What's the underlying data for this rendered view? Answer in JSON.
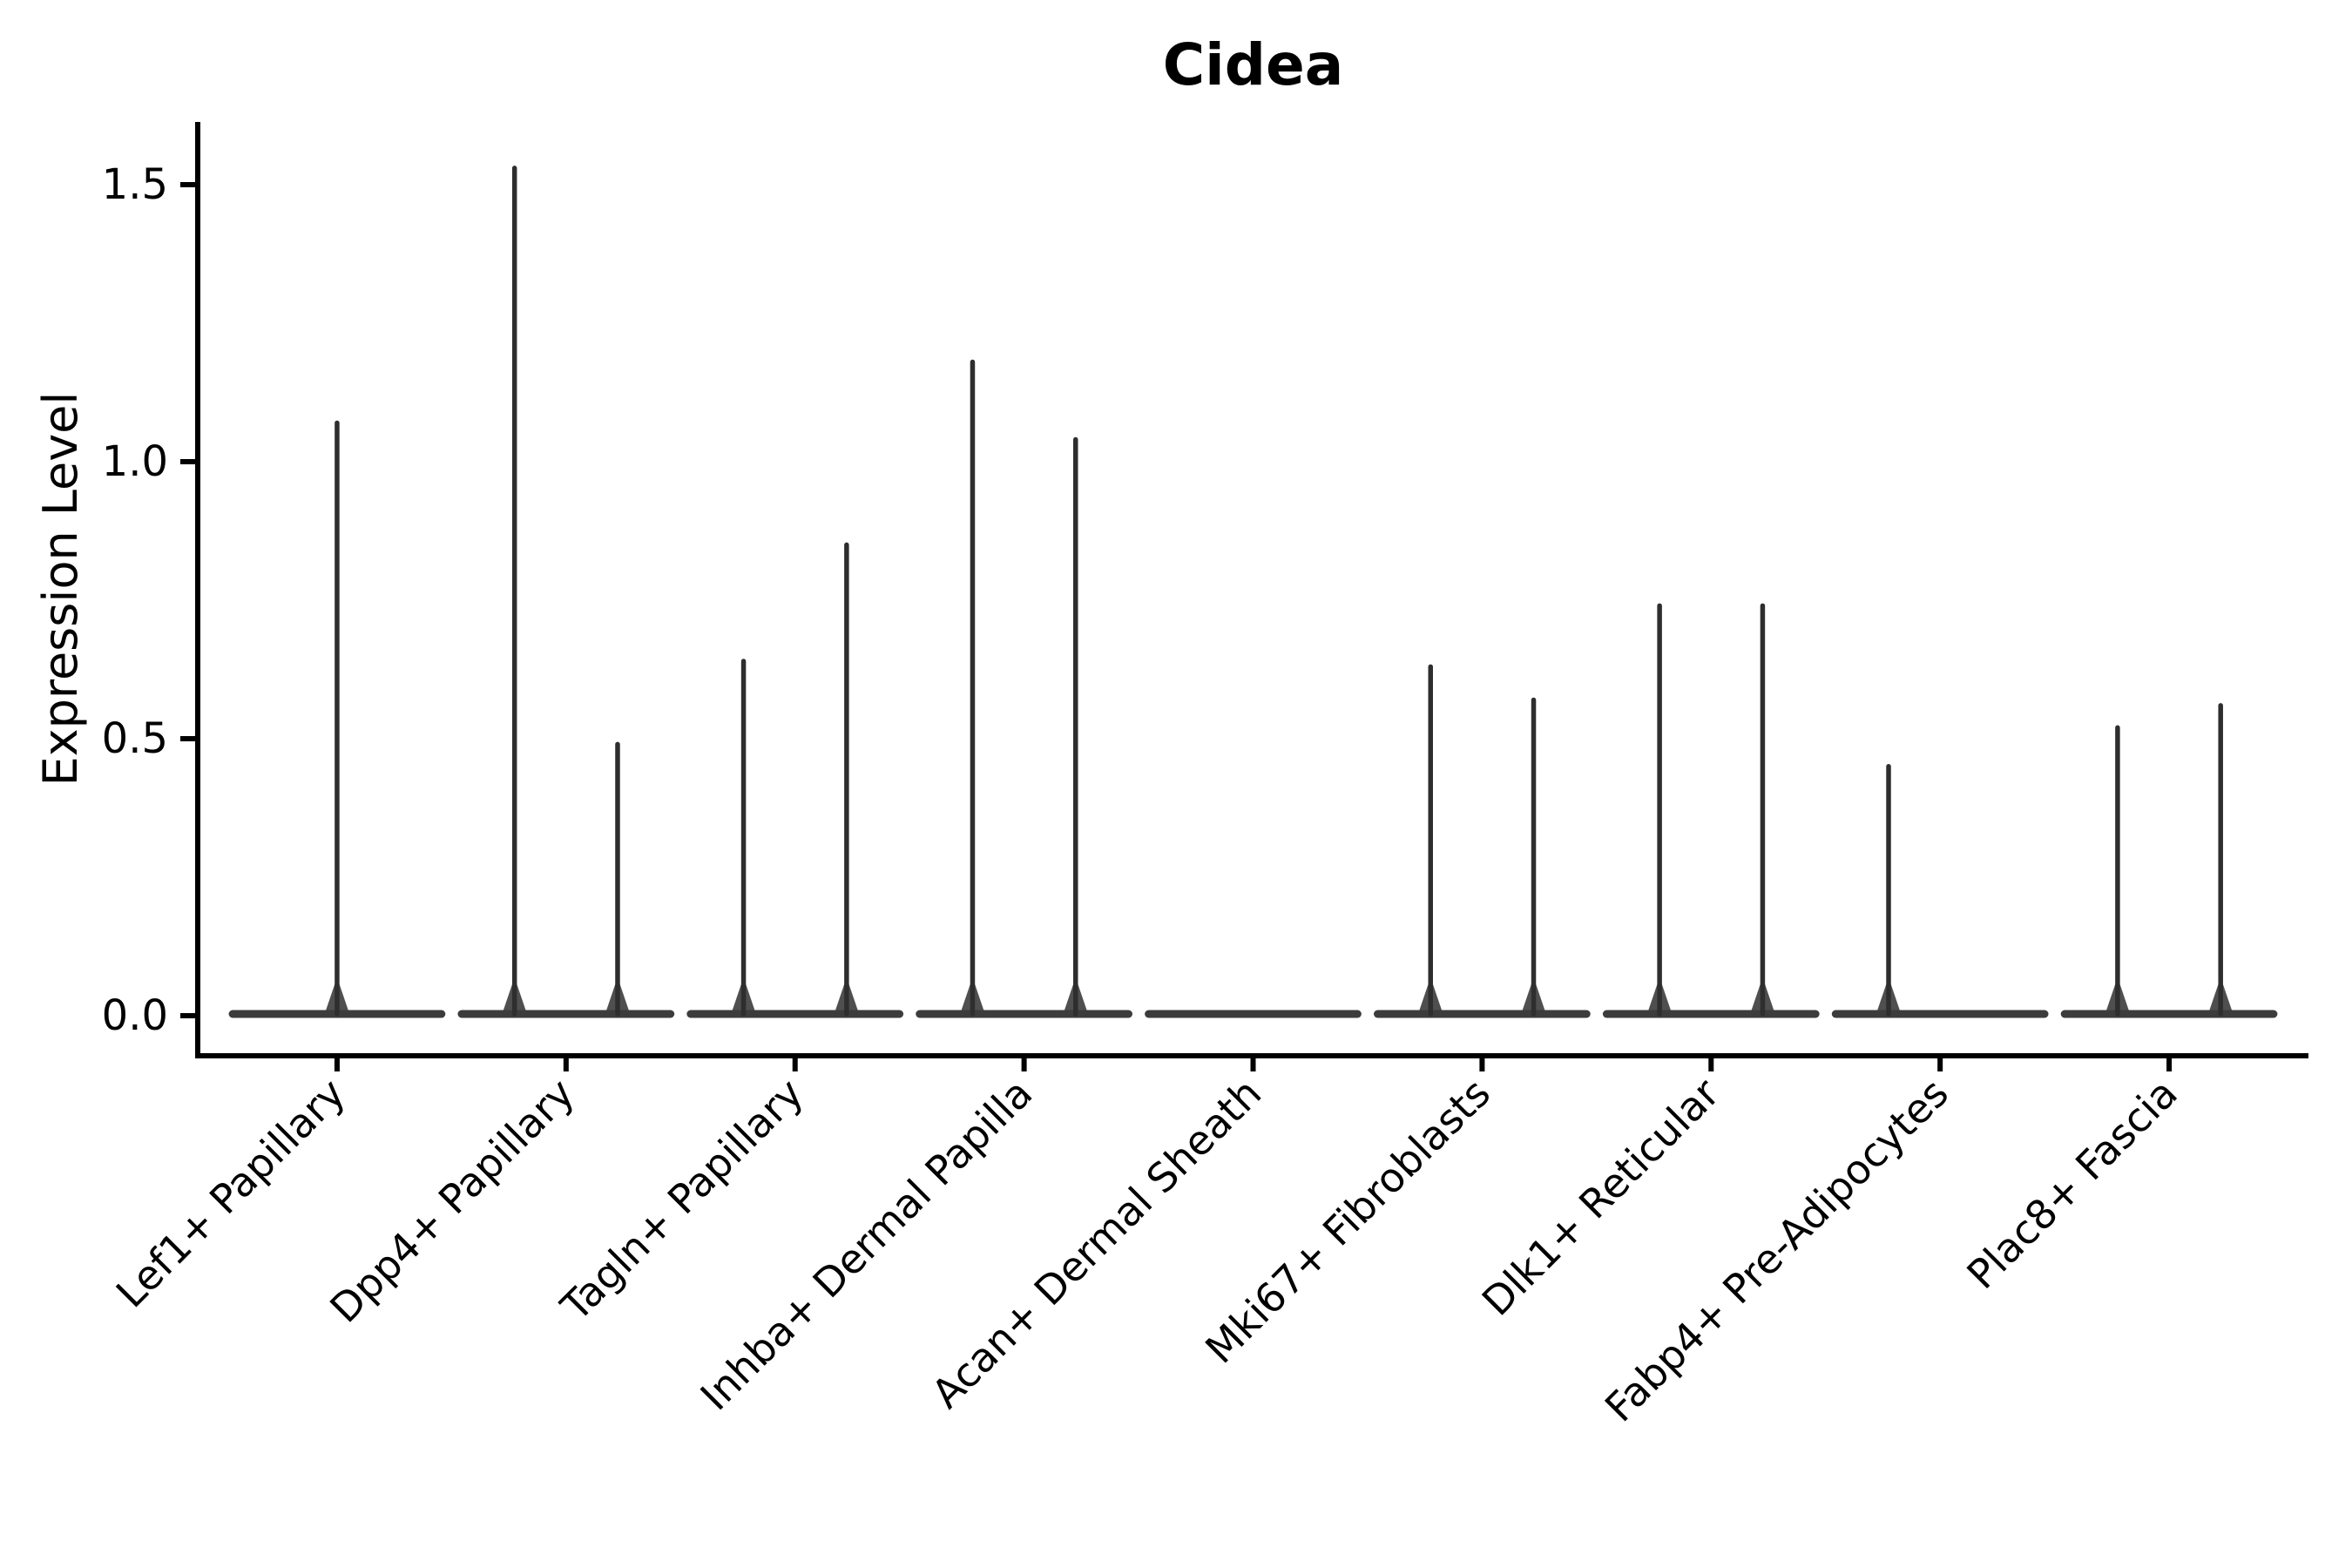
{
  "title": "Cidea",
  "colors": {
    "background": "#ffffff",
    "axis": "#000000",
    "text": "#000000",
    "violin_fill": "#3c3c3c",
    "spike": "#2e2e2e"
  },
  "chart_data": {
    "type": "violin",
    "title": "Cidea",
    "xlabel": "",
    "ylabel": "Expression Level",
    "legend_position": "none",
    "grid": false,
    "ylim": [
      -0.09,
      1.62
    ],
    "ytick_values": [
      0.0,
      0.5,
      1.0,
      1.5
    ],
    "ytick_labels": [
      "0.0",
      "0.5",
      "1.0",
      "1.5"
    ],
    "categories": [
      "Lef1+ Papillary",
      "Dpp4+ Papillary",
      "Tagln+ Papillary",
      "Inhba+ Dermal Papilla",
      "Acan+ Dermal Sheath",
      "Mki67+ Fibroblasts",
      "Dlk1+ Reticular",
      "Fabp4+ Pre-Adipocytes",
      "Plac8+ Fascia"
    ],
    "violins": [
      {
        "category": "Lef1+ Papillary",
        "bulk_at_zero": true,
        "spikes": [
          {
            "offset": 0,
            "max_expression": 1.07
          }
        ]
      },
      {
        "category": "Dpp4+ Papillary",
        "bulk_at_zero": true,
        "spikes": [
          {
            "offset": -0.225,
            "max_expression": 1.53
          },
          {
            "offset": 0.225,
            "max_expression": 0.49
          }
        ]
      },
      {
        "category": "Tagln+ Papillary",
        "bulk_at_zero": true,
        "spikes": [
          {
            "offset": -0.225,
            "max_expression": 0.64
          },
          {
            "offset": 0.225,
            "max_expression": 0.85
          }
        ]
      },
      {
        "category": "Inhba+ Dermal Papilla",
        "bulk_at_zero": true,
        "spikes": [
          {
            "offset": -0.225,
            "max_expression": 1.18
          },
          {
            "offset": 0.225,
            "max_expression": 1.04
          }
        ]
      },
      {
        "category": "Acan+ Dermal Sheath",
        "bulk_at_zero": true,
        "spikes": []
      },
      {
        "category": "Mki67+ Fibroblasts",
        "bulk_at_zero": true,
        "spikes": [
          {
            "offset": -0.225,
            "max_expression": 0.63
          },
          {
            "offset": 0.225,
            "max_expression": 0.57
          }
        ]
      },
      {
        "category": "Dlk1+ Reticular",
        "bulk_at_zero": true,
        "spikes": [
          {
            "offset": -0.225,
            "max_expression": 0.74
          },
          {
            "offset": 0.225,
            "max_expression": 0.74
          }
        ]
      },
      {
        "category": "Fabp4+ Pre-Adipocytes",
        "bulk_at_zero": true,
        "spikes": [
          {
            "offset": -0.225,
            "max_expression": 0.45
          }
        ]
      },
      {
        "category": "Plac8+ Fascia",
        "bulk_at_zero": true,
        "spikes": [
          {
            "offset": -0.225,
            "max_expression": 0.52
          },
          {
            "offset": 0.225,
            "max_expression": 0.56
          }
        ]
      }
    ]
  }
}
